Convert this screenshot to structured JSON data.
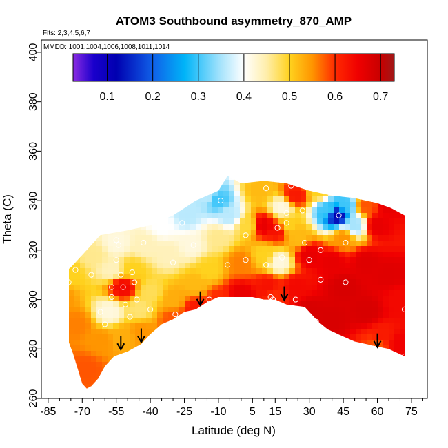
{
  "chart_data": {
    "type": "heatmap",
    "title": "ATOM3 Southbound asymmetry_870_AMP",
    "flights_note": "Flts: 2,3,4,5,6,7",
    "mmdd_note": "MMDD: 1001,1004,1006,1008,1011,1014",
    "xlabel": "Latitude (deg N)",
    "ylabel": "Theta (C)",
    "xlim": [
      -88,
      82
    ],
    "ylim": [
      260,
      405
    ],
    "x_ticks": [
      -85,
      -70,
      -55,
      -40,
      -25,
      -10,
      5,
      15,
      30,
      45,
      60,
      75
    ],
    "x_tick_labels": [
      "-85",
      "-70",
      "-55",
      "-40",
      "-25",
      "-10",
      "5",
      "15",
      "30",
      "45",
      "60",
      "75"
    ],
    "y_ticks": [
      260,
      280,
      300,
      320,
      340,
      360,
      380,
      400
    ],
    "y_tick_labels": [
      "260",
      "280",
      "300",
      "320",
      "340",
      "360",
      "380",
      "400"
    ],
    "colorbar": {
      "range": [
        0.025,
        0.73
      ],
      "ticks": [
        0.1,
        0.2,
        0.3,
        0.4,
        0.5,
        0.6,
        0.7
      ],
      "tick_labels": [
        "0.1",
        "0.2",
        "0.3",
        "0.4",
        "0.5",
        "0.6",
        "0.7"
      ],
      "color_stops": [
        {
          "value": 0.025,
          "color": "#8a2be2"
        },
        {
          "value": 0.07,
          "color": "#1a00cc"
        },
        {
          "value": 0.12,
          "color": "#0000b0"
        },
        {
          "value": 0.2,
          "color": "#1060e8"
        },
        {
          "value": 0.27,
          "color": "#00b4f8"
        },
        {
          "value": 0.35,
          "color": "#a8e4fc"
        },
        {
          "value": 0.4,
          "color": "#ffffff"
        },
        {
          "value": 0.45,
          "color": "#ffeeaa"
        },
        {
          "value": 0.5,
          "color": "#ffd21e"
        },
        {
          "value": 0.55,
          "color": "#ff9500"
        },
        {
          "value": 0.6,
          "color": "#ff2a00"
        },
        {
          "value": 0.65,
          "color": "#f00000"
        },
        {
          "value": 0.7,
          "color": "#c80000"
        },
        {
          "value": 0.73,
          "color": "#a01818"
        }
      ]
    },
    "domain_top": [
      [
        -82,
        308
      ],
      [
        -75,
        313
      ],
      [
        -70,
        318
      ],
      [
        -62,
        326
      ],
      [
        -50,
        328
      ],
      [
        -40,
        330
      ],
      [
        -30,
        334
      ],
      [
        -20,
        340
      ],
      [
        -10,
        344
      ],
      [
        -6,
        350
      ],
      [
        0,
        347
      ],
      [
        10,
        348
      ],
      [
        20,
        347
      ],
      [
        30,
        344
      ],
      [
        40,
        342
      ],
      [
        50,
        341
      ],
      [
        60,
        339
      ],
      [
        66,
        337
      ],
      [
        72,
        334
      ]
    ],
    "domain_bottom": [
      [
        72,
        277
      ],
      [
        65,
        280
      ],
      [
        60,
        281
      ],
      [
        55,
        282
      ],
      [
        50,
        283
      ],
      [
        45,
        285
      ],
      [
        38,
        288
      ],
      [
        34,
        291
      ],
      [
        28,
        297
      ],
      [
        20,
        298
      ],
      [
        15,
        300
      ],
      [
        10,
        300
      ],
      [
        5,
        301
      ],
      [
        -5,
        301
      ],
      [
        -10,
        301
      ],
      [
        -15,
        299
      ],
      [
        -20,
        296
      ],
      [
        -25,
        295
      ],
      [
        -30,
        292
      ],
      [
        -35,
        290
      ],
      [
        -40,
        286
      ],
      [
        -44,
        282
      ],
      [
        -50,
        279
      ],
      [
        -56,
        277
      ],
      [
        -60,
        273
      ],
      [
        -63,
        268
      ],
      [
        -66,
        265
      ],
      [
        -68,
        264
      ],
      [
        -70,
        266
      ],
      [
        -74,
        278
      ],
      [
        -78,
        288
      ],
      [
        -82,
        296
      ]
    ],
    "asymmetry_field": [
      {
        "lat": -80,
        "theta": 302,
        "value": 0.55
      },
      {
        "lat": -72,
        "theta": 290,
        "value": 0.56
      },
      {
        "lat": -68,
        "theta": 272,
        "value": 0.58
      },
      {
        "lat": -62,
        "theta": 283,
        "value": 0.55
      },
      {
        "lat": -75,
        "theta": 310,
        "value": 0.5
      },
      {
        "lat": -65,
        "theta": 318,
        "value": 0.46
      },
      {
        "lat": -57,
        "theta": 312,
        "value": 0.44
      },
      {
        "lat": -55,
        "theta": 323,
        "value": 0.42
      },
      {
        "lat": -58,
        "theta": 295,
        "value": 0.42
      },
      {
        "lat": -52,
        "theta": 305,
        "value": 0.64
      },
      {
        "lat": -48,
        "theta": 312,
        "value": 0.5
      },
      {
        "lat": -52,
        "theta": 285,
        "value": 0.53
      },
      {
        "lat": -45,
        "theta": 296,
        "value": 0.47
      },
      {
        "lat": -44,
        "theta": 287,
        "value": 0.55
      },
      {
        "lat": -40,
        "theta": 303,
        "value": 0.48
      },
      {
        "lat": -42,
        "theta": 322,
        "value": 0.44
      },
      {
        "lat": -35,
        "theta": 330,
        "value": 0.4
      },
      {
        "lat": -32,
        "theta": 318,
        "value": 0.44
      },
      {
        "lat": -30,
        "theta": 300,
        "value": 0.53
      },
      {
        "lat": -30,
        "theta": 292,
        "value": 0.58
      },
      {
        "lat": -24,
        "theta": 334,
        "value": 0.36
      },
      {
        "lat": -22,
        "theta": 322,
        "value": 0.42
      },
      {
        "lat": -20,
        "theta": 306,
        "value": 0.52
      },
      {
        "lat": -20,
        "theta": 296,
        "value": 0.62
      },
      {
        "lat": -15,
        "theta": 342,
        "value": 0.36
      },
      {
        "lat": -10,
        "theta": 340,
        "value": 0.3
      },
      {
        "lat": -10,
        "theta": 325,
        "value": 0.46
      },
      {
        "lat": -14,
        "theta": 312,
        "value": 0.5
      },
      {
        "lat": -10,
        "theta": 300,
        "value": 0.6
      },
      {
        "lat": -5,
        "theta": 334,
        "value": 0.36
      },
      {
        "lat": 0,
        "theta": 315,
        "value": 0.56
      },
      {
        "lat": 3,
        "theta": 330,
        "value": 0.49
      },
      {
        "lat": 0,
        "theta": 302,
        "value": 0.66
      },
      {
        "lat": 8,
        "theta": 344,
        "value": 0.52
      },
      {
        "lat": 10,
        "theta": 330,
        "value": 0.66
      },
      {
        "lat": 10,
        "theta": 318,
        "value": 0.5
      },
      {
        "lat": 12,
        "theta": 305,
        "value": 0.63
      },
      {
        "lat": 16,
        "theta": 328,
        "value": 0.63
      },
      {
        "lat": 18,
        "theta": 337,
        "value": 0.42
      },
      {
        "lat": 17,
        "theta": 315,
        "value": 0.42
      },
      {
        "lat": 15,
        "theta": 302,
        "value": 0.6
      },
      {
        "lat": 20,
        "theta": 330,
        "value": 0.5
      },
      {
        "lat": 24,
        "theta": 342,
        "value": 0.62
      },
      {
        "lat": 25,
        "theta": 325,
        "value": 0.52
      },
      {
        "lat": 24,
        "theta": 305,
        "value": 0.64
      },
      {
        "lat": 30,
        "theta": 318,
        "value": 0.66
      },
      {
        "lat": 30,
        "theta": 295,
        "value": 0.68
      },
      {
        "lat": 34,
        "theta": 344,
        "value": 0.5
      },
      {
        "lat": 38,
        "theta": 336,
        "value": 0.3
      },
      {
        "lat": 42,
        "theta": 334,
        "value": 0.12
      },
      {
        "lat": 46,
        "theta": 338,
        "value": 0.3
      },
      {
        "lat": 50,
        "theta": 330,
        "value": 0.35
      },
      {
        "lat": 45,
        "theta": 325,
        "value": 0.55
      },
      {
        "lat": 40,
        "theta": 315,
        "value": 0.66
      },
      {
        "lat": 45,
        "theta": 305,
        "value": 0.68
      },
      {
        "lat": 40,
        "theta": 292,
        "value": 0.68
      },
      {
        "lat": 55,
        "theta": 338,
        "value": 0.58
      },
      {
        "lat": 60,
        "theta": 330,
        "value": 0.66
      },
      {
        "lat": 65,
        "theta": 338,
        "value": 0.66
      },
      {
        "lat": 55,
        "theta": 315,
        "value": 0.67
      },
      {
        "lat": 65,
        "theta": 310,
        "value": 0.67
      },
      {
        "lat": 55,
        "theta": 295,
        "value": 0.68
      },
      {
        "lat": 70,
        "theta": 300,
        "value": 0.64
      },
      {
        "lat": 70,
        "theta": 282,
        "value": 0.65
      },
      {
        "lat": 62,
        "theta": 285,
        "value": 0.62
      },
      {
        "lat": 60,
        "theta": 282,
        "value": 0.58
      }
    ],
    "sample_points": [
      {
        "lat": -76,
        "theta": 307
      },
      {
        "lat": -73,
        "theta": 312
      },
      {
        "lat": -66,
        "theta": 310
      },
      {
        "lat": -62,
        "theta": 295
      },
      {
        "lat": -60,
        "theta": 290
      },
      {
        "lat": -57,
        "theta": 305
      },
      {
        "lat": -57,
        "theta": 301
      },
      {
        "lat": -55,
        "theta": 316
      },
      {
        "lat": -55,
        "theta": 324
      },
      {
        "lat": -54,
        "theta": 322
      },
      {
        "lat": -53,
        "theta": 310
      },
      {
        "lat": -52,
        "theta": 305
      },
      {
        "lat": -51,
        "theta": 298
      },
      {
        "lat": -49,
        "theta": 293
      },
      {
        "lat": -48,
        "theta": 311
      },
      {
        "lat": -47,
        "theta": 307
      },
      {
        "lat": -46,
        "theta": 300
      },
      {
        "lat": -43,
        "theta": 323
      },
      {
        "lat": -40,
        "theta": 296
      },
      {
        "lat": -33,
        "theta": 329
      },
      {
        "lat": -30,
        "theta": 315
      },
      {
        "lat": -29,
        "theta": 294
      },
      {
        "lat": -28,
        "theta": 290
      },
      {
        "lat": -26,
        "theta": 331
      },
      {
        "lat": -21,
        "theta": 322
      },
      {
        "lat": -14,
        "theta": 300
      },
      {
        "lat": -9,
        "theta": 340
      },
      {
        "lat": -6,
        "theta": 314
      },
      {
        "lat": 2,
        "theta": 326
      },
      {
        "lat": 2,
        "theta": 316
      },
      {
        "lat": 11,
        "theta": 345
      },
      {
        "lat": 11,
        "theta": 314
      },
      {
        "lat": 13,
        "theta": 301
      },
      {
        "lat": 14,
        "theta": 300
      },
      {
        "lat": 16,
        "theta": 329
      },
      {
        "lat": 18,
        "theta": 317
      },
      {
        "lat": 20,
        "theta": 335
      },
      {
        "lat": 20,
        "theta": 331
      },
      {
        "lat": 22,
        "theta": 346
      },
      {
        "lat": 24,
        "theta": 300
      },
      {
        "lat": 27,
        "theta": 336
      },
      {
        "lat": 28,
        "theta": 323
      },
      {
        "lat": 30,
        "theta": 316
      },
      {
        "lat": 33,
        "theta": 291
      },
      {
        "lat": 35,
        "theta": 308
      },
      {
        "lat": 35,
        "theta": 320
      },
      {
        "lat": 39,
        "theta": 286
      },
      {
        "lat": 43,
        "theta": 334
      },
      {
        "lat": 46,
        "theta": 307
      },
      {
        "lat": 46,
        "theta": 323
      },
      {
        "lat": 69,
        "theta": 337
      },
      {
        "lat": 72,
        "theta": 296
      },
      {
        "lat": 72,
        "theta": 277
      }
    ],
    "arrows": [
      {
        "lat": -53,
        "theta": 280
      },
      {
        "lat": -44,
        "theta": 283
      },
      {
        "lat": -18,
        "theta": 298
      },
      {
        "lat": 19,
        "theta": 300
      },
      {
        "lat": 60,
        "theta": 281
      }
    ]
  }
}
